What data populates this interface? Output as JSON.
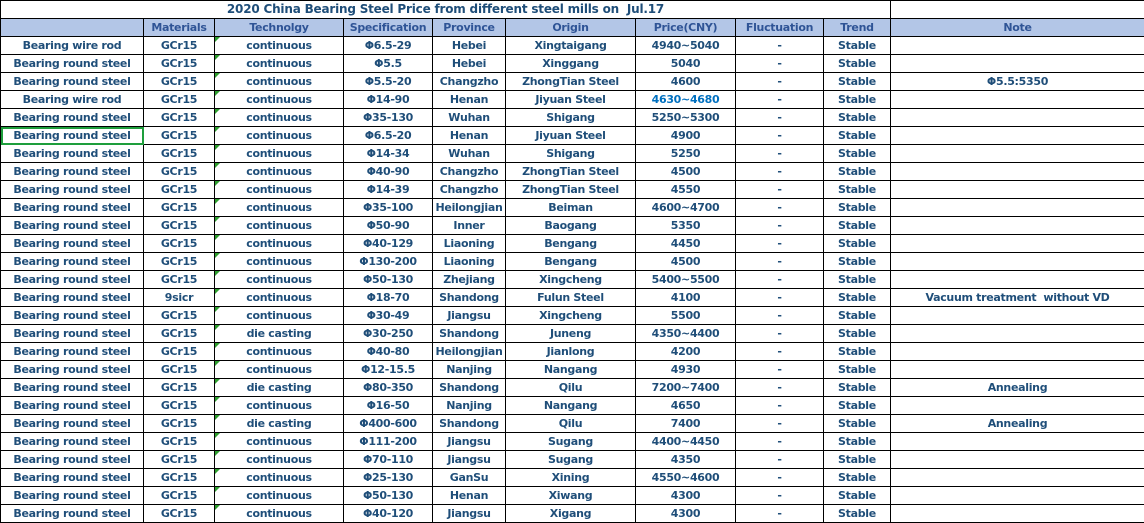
{
  "title": "2020 China Bearing Steel Price from different steel mills on  Jul.17",
  "columns": [
    "",
    "Materials",
    "Technolgy",
    "Specification",
    "Province",
    "Origin",
    "Price(CNY)",
    "Fluctuation",
    "Trend",
    "Note"
  ],
  "colors": {
    "header_bg": "#B3C6E7",
    "header_text": "#2F5496",
    "body_text": "#1F4E79",
    "price_highlight": "#0070C0",
    "grid_border": "#000000",
    "selection_green": "#1E9E3C",
    "error_triangle_green": "#2E9E2E"
  },
  "rows": [
    {
      "product": "Bearing wire rod",
      "materials": "GCr15",
      "technology": "continuous",
      "specification": "Φ6.5-29",
      "province": "Hebei",
      "origin": "Xingtaigang",
      "price": "4940~5040",
      "fluctuation": "-",
      "trend": "Stable",
      "note": ""
    },
    {
      "product": "Bearing round steel",
      "materials": "GCr15",
      "technology": "continuous",
      "specification": "Φ5.5",
      "province": "Hebei",
      "origin": "Xinggang",
      "price": "5040",
      "fluctuation": "-",
      "trend": "Stable",
      "note": ""
    },
    {
      "product": "Bearing round steel",
      "materials": "GCr15",
      "technology": "continuous",
      "specification": "Φ5.5-20",
      "province": "Changzho",
      "origin": "ZhongTian Steel",
      "price": "4600",
      "fluctuation": "-",
      "trend": "Stable",
      "note": "Φ5.5:5350"
    },
    {
      "product": "Bearing wire rod",
      "materials": "GCr15",
      "technology": "continuous",
      "specification": "Φ14-90",
      "province": "Henan",
      "origin": "Jiyuan Steel",
      "price": "4630~4680",
      "fluctuation": "-",
      "trend": "Stable",
      "note": "",
      "price_style": "light"
    },
    {
      "product": "Bearing round steel",
      "materials": "GCr15",
      "technology": "continuous",
      "specification": "Φ35-130",
      "province": "Wuhan",
      "origin": "Shigang",
      "price": "5250~5300",
      "fluctuation": "-",
      "trend": "Stable",
      "note": ""
    },
    {
      "product": "Bearing round steel",
      "materials": "GCr15",
      "technology": "continuous",
      "specification": "Φ6.5-20",
      "province": "Henan",
      "origin": "Jiyuan Steel",
      "price": "4900",
      "fluctuation": "-",
      "trend": "Stable",
      "note": "",
      "selected": true
    },
    {
      "product": "Bearing round steel",
      "materials": "GCr15",
      "technology": "continuous",
      "specification": "Φ14-34",
      "province": "Wuhan",
      "origin": "Shigang",
      "price": "5250",
      "fluctuation": "-",
      "trend": "Stable",
      "note": ""
    },
    {
      "product": "Bearing round steel",
      "materials": "GCr15",
      "technology": "continuous",
      "specification": "Φ40-90",
      "province": "Changzho",
      "origin": "ZhongTian Steel",
      "price": "4500",
      "fluctuation": "-",
      "trend": "Stable",
      "note": ""
    },
    {
      "product": "Bearing round steel",
      "materials": "GCr15",
      "technology": "continuous",
      "specification": "Φ14-39",
      "province": "Changzho",
      "origin": "ZhongTian Steel",
      "price": "4550",
      "fluctuation": "-",
      "trend": "Stable",
      "note": ""
    },
    {
      "product": "Bearing round steel",
      "materials": "GCr15",
      "technology": "continuous",
      "specification": "Φ35-100",
      "province": "Heilongjian",
      "origin": "Beiman",
      "price": "4600~4700",
      "fluctuation": "-",
      "trend": "Stable",
      "note": ""
    },
    {
      "product": "Bearing round steel",
      "materials": "GCr15",
      "technology": "continuous",
      "specification": "Φ50-90",
      "province": "Inner",
      "origin": "Baogang",
      "price": "5350",
      "fluctuation": "-",
      "trend": "Stable",
      "note": ""
    },
    {
      "product": "Bearing round steel",
      "materials": "GCr15",
      "technology": "continuous",
      "specification": "Φ40-129",
      "province": "Liaoning",
      "origin": "Bengang",
      "price": "4450",
      "fluctuation": "-",
      "trend": "Stable",
      "note": ""
    },
    {
      "product": "Bearing round steel",
      "materials": "GCr15",
      "technology": "continuous",
      "specification": "Φ130-200",
      "province": "Liaoning",
      "origin": "Bengang",
      "price": "4500",
      "fluctuation": "-",
      "trend": "Stable",
      "note": ""
    },
    {
      "product": "Bearing round steel",
      "materials": "GCr15",
      "technology": "continuous",
      "specification": "Φ50-130",
      "province": "Zhejiang",
      "origin": "Xingcheng",
      "price": "5400~5500",
      "fluctuation": "-",
      "trend": "Stable",
      "note": ""
    },
    {
      "product": "Bearing round steel",
      "materials": "9sicr",
      "technology": "continuous",
      "specification": "Φ18-70",
      "province": "Shandong",
      "origin": "Fulun Steel",
      "price": "4100",
      "fluctuation": "-",
      "trend": "Stable",
      "note": "Vacuum treatment  without VD"
    },
    {
      "product": "Bearing round steel",
      "materials": "GCr15",
      "technology": "continuous",
      "specification": "Φ30-49",
      "province": "Jiangsu",
      "origin": "Xingcheng",
      "price": "5500",
      "fluctuation": "-",
      "trend": "Stable",
      "note": ""
    },
    {
      "product": "Bearing round steel",
      "materials": "GCr15",
      "technology": "die casting",
      "specification": "Φ30-250",
      "province": "Shandong",
      "origin": "Juneng",
      "price": "4350~4400",
      "fluctuation": "-",
      "trend": "Stable",
      "note": ""
    },
    {
      "product": "Bearing round steel",
      "materials": "GCr15",
      "technology": "continuous",
      "specification": "Φ40-80",
      "province": "Heilongjian",
      "origin": "Jianlong",
      "price": "4200",
      "fluctuation": "-",
      "trend": "Stable",
      "note": ""
    },
    {
      "product": "Bearing round steel",
      "materials": "GCr15",
      "technology": "continuous",
      "specification": "Φ12-15.5",
      "province": "Nanjing",
      "origin": "Nangang",
      "price": "4930",
      "fluctuation": "-",
      "trend": "Stable",
      "note": ""
    },
    {
      "product": "Bearing round steel",
      "materials": "GCr15",
      "technology": "die casting",
      "specification": "Φ80-350",
      "province": "Shandong",
      "origin": "Qilu",
      "price": "7200~7400",
      "fluctuation": "-",
      "trend": "Stable",
      "note": "Annealing"
    },
    {
      "product": "Bearing round steel",
      "materials": "GCr15",
      "technology": "continuous",
      "specification": "Φ16-50",
      "province": "Nanjing",
      "origin": "Nangang",
      "price": "4650",
      "fluctuation": "-",
      "trend": "Stable",
      "note": ""
    },
    {
      "product": "Bearing round steel",
      "materials": "GCr15",
      "technology": "die casting",
      "specification": "Φ400-600",
      "province": "Shandong",
      "origin": "Qilu",
      "price": "7400",
      "fluctuation": "-",
      "trend": "Stable",
      "note": "Annealing"
    },
    {
      "product": "Bearing round steel",
      "materials": "GCr15",
      "technology": "continuous",
      "specification": "Φ111-200",
      "province": "Jiangsu",
      "origin": "Sugang",
      "price": "4400~4450",
      "fluctuation": "-",
      "trend": "Stable",
      "note": ""
    },
    {
      "product": "Bearing round steel",
      "materials": "GCr15",
      "technology": "continuous",
      "specification": "Φ70-110",
      "province": "Jiangsu",
      "origin": "Sugang",
      "price": "4350",
      "fluctuation": "-",
      "trend": "Stable",
      "note": ""
    },
    {
      "product": "Bearing round steel",
      "materials": "GCr15",
      "technology": "continuous",
      "specification": "Φ25-130",
      "province": "GanSu",
      "origin": "Xining",
      "price": "4550~4600",
      "fluctuation": "-",
      "trend": "Stable",
      "note": ""
    },
    {
      "product": "Bearing round steel",
      "materials": "GCr15",
      "technology": "continuous",
      "specification": "Φ50-130",
      "province": "Henan",
      "origin": "Xiwang",
      "price": "4300",
      "fluctuation": "-",
      "trend": "Stable",
      "note": ""
    },
    {
      "product": "Bearing round steel",
      "materials": "GCr15",
      "technology": "continuous",
      "specification": "Φ40-120",
      "province": "Jiangsu",
      "origin": "Xigang",
      "price": "4300",
      "fluctuation": "-",
      "trend": "Stable",
      "note": ""
    }
  ]
}
